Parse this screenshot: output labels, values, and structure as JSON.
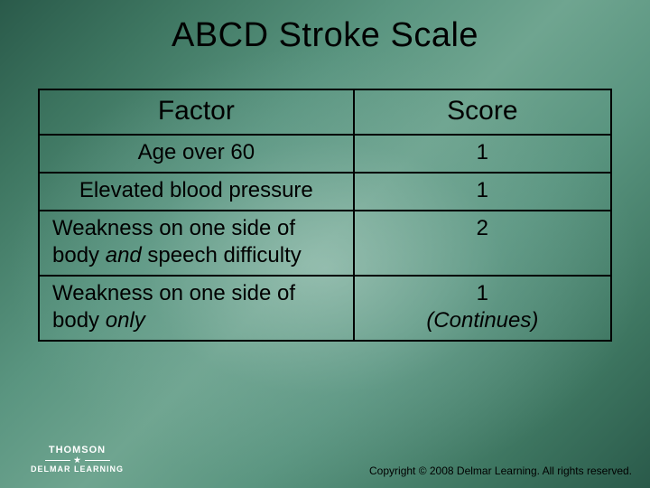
{
  "title": "ABCD Stroke Scale",
  "table": {
    "columns": [
      "Factor",
      "Score"
    ],
    "col_widths_pct": [
      55,
      45
    ],
    "border_color": "#000000",
    "font_sizes": {
      "header": 30,
      "cell": 24,
      "title": 38
    },
    "rows": [
      {
        "factor_plain": "Age over 60",
        "score": "1",
        "factor_align": "center"
      },
      {
        "factor_plain": "Elevated blood pressure",
        "score": "1",
        "factor_align": "center"
      },
      {
        "factor_pre": "Weakness on one side of body ",
        "factor_italic": "and",
        "factor_post": " speech difficulty",
        "score": "2",
        "factor_align": "left"
      },
      {
        "factor_pre": "Weakness on one side of body ",
        "factor_italic": "only",
        "factor_post": "",
        "score": "1",
        "score_extra_italic": "(Continues)",
        "factor_align": "left"
      }
    ]
  },
  "footer": {
    "brand_top": "THOMSON",
    "brand_bottom": "DELMAR LEARNING",
    "copyright": "Copyright © 2008 Delmar Learning. All rights reserved."
  },
  "colors": {
    "text": "#000000",
    "brand_text": "#ffffff",
    "bg_gradient": [
      "#2a5a4a",
      "#3d7560",
      "#5a9580",
      "#6fa590"
    ]
  }
}
